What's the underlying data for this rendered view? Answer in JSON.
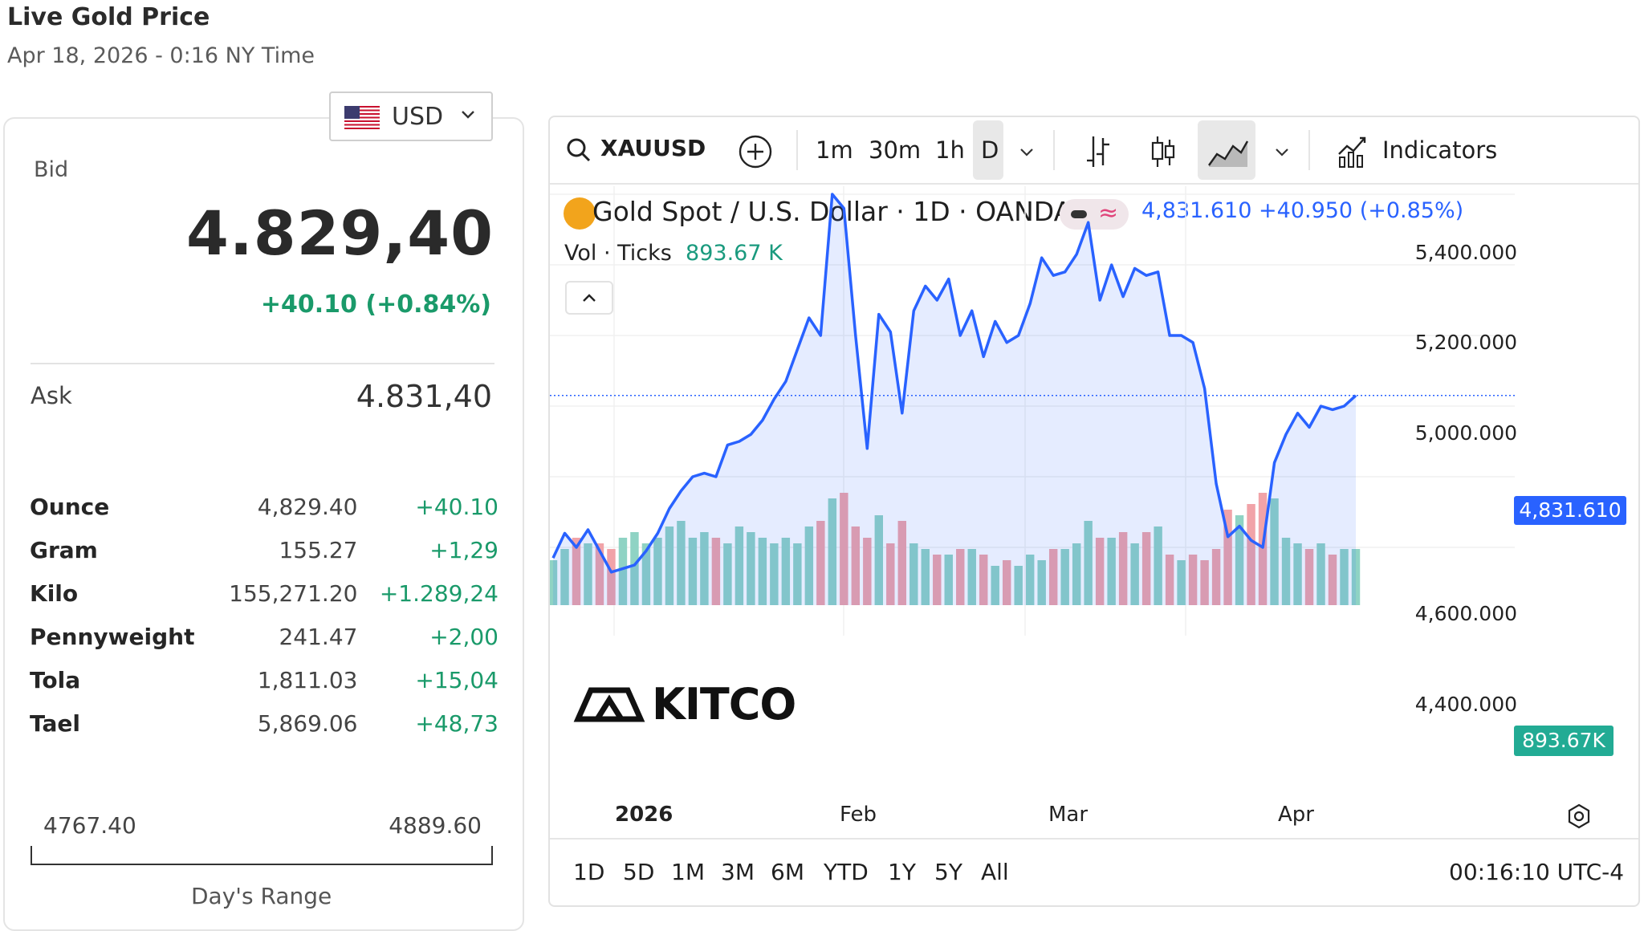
{
  "page": {
    "title": "Live Gold Price",
    "subtitle": "Apr 18, 2026 - 0:16 NY Time"
  },
  "currency": {
    "selected": "USD"
  },
  "bid": {
    "label": "Bid",
    "value": "4.829,40",
    "change": "+40.10 (+0.84%)"
  },
  "ask": {
    "label": "Ask",
    "value": "4.831,40"
  },
  "units": [
    {
      "unit": "Ounce",
      "price": "4,829.40",
      "change": "+40.10"
    },
    {
      "unit": "Gram",
      "price": "155.27",
      "change": "+1,29"
    },
    {
      "unit": "Kilo",
      "price": "155,271.20",
      "change": "+1.289,24"
    },
    {
      "unit": "Pennyweight",
      "price": "241.47",
      "change": "+2,00"
    },
    {
      "unit": "Tola",
      "price": "1,811.03",
      "change": "+15,04"
    },
    {
      "unit": "Tael",
      "price": "5,869.06",
      "change": "+48,73"
    }
  ],
  "day_range": {
    "low": "4767.40",
    "high": "4889.60",
    "label": "Day's Range"
  },
  "toolbar": {
    "symbol": "XAUUSD",
    "timeframes": [
      "1m",
      "30m",
      "1h",
      "D"
    ],
    "active_timeframe": "D",
    "indicators_label": "Indicators"
  },
  "legend": {
    "name": "Gold Spot / U.S. Dollar · 1D · OANDA",
    "last": "4,831.610",
    "change": "+40.950 (+0.85%)",
    "vol_label": "Vol · Ticks",
    "vol_value": "893.67 K"
  },
  "watermark": "KITCO",
  "price_axis": [
    "5,400.000",
    "5,200.000",
    "5,000.000",
    "4,600.000",
    "4,400.000"
  ],
  "price_tag": "4,831.610",
  "vol_tag": "893.67K",
  "time_axis": [
    "2026",
    "Feb",
    "Mar",
    "Apr"
  ],
  "range_buttons": [
    "1D",
    "5D",
    "1M",
    "3M",
    "6M",
    "YTD",
    "1Y",
    "5Y",
    "All"
  ],
  "clock": "00:16:10 UTC-4",
  "colors": {
    "line": "#2962ff",
    "up_volume": "#8fd3c4",
    "down_volume": "#f1a3a8",
    "positive": "#1a9a6a"
  },
  "chart_data": {
    "type": "area",
    "series": [
      {
        "values": [
          4370,
          4440,
          4400,
          4450,
          4390,
          4330,
          4340,
          4350,
          4390,
          4440,
          4510,
          4560,
          4600,
          4610,
          4600,
          4690,
          4700,
          4720,
          4760,
          4820,
          4870,
          4960,
          5050,
          5000,
          5400,
          5360,
          5000,
          4680,
          5060,
          5010,
          4780,
          5070,
          5140,
          5100,
          5160,
          5000,
          5070,
          4940,
          5040,
          4980,
          5000,
          5090,
          5220,
          5170,
          5180,
          5230,
          5320,
          5100,
          5200,
          5110,
          5190,
          5170,
          5180,
          5000,
          5000,
          4980,
          4850,
          4580,
          4430,
          4460,
          4420,
          4400,
          4640,
          4720,
          4780,
          4740,
          4800,
          4790,
          4800,
          4830
        ]
      }
    ],
    "volume": [
      {
        "values": [
          0.4,
          0.5,
          0.6,
          0.55,
          0.55,
          0.5,
          0.6,
          0.65,
          0.55,
          0.6,
          0.7,
          0.75,
          0.6,
          0.65,
          0.6,
          0.55,
          0.7,
          0.65,
          0.6,
          0.55,
          0.6,
          0.55,
          0.7,
          0.75,
          0.95,
          1.0,
          0.7,
          0.6,
          0.8,
          0.55,
          0.75,
          0.55,
          0.5,
          0.45,
          0.45,
          0.5,
          0.5,
          0.45,
          0.35,
          0.4,
          0.35,
          0.45,
          0.4,
          0.5,
          0.5,
          0.55,
          0.75,
          0.6,
          0.6,
          0.65,
          0.55,
          0.65,
          0.7,
          0.45,
          0.4,
          0.45,
          0.4,
          0.5,
          0.85,
          0.8,
          0.9,
          1.0,
          0.95,
          0.6,
          0.55,
          0.5,
          0.55,
          0.45,
          0.5,
          0.5
        ]
      }
    ],
    "ylim": [
      4300,
      5450
    ]
  }
}
